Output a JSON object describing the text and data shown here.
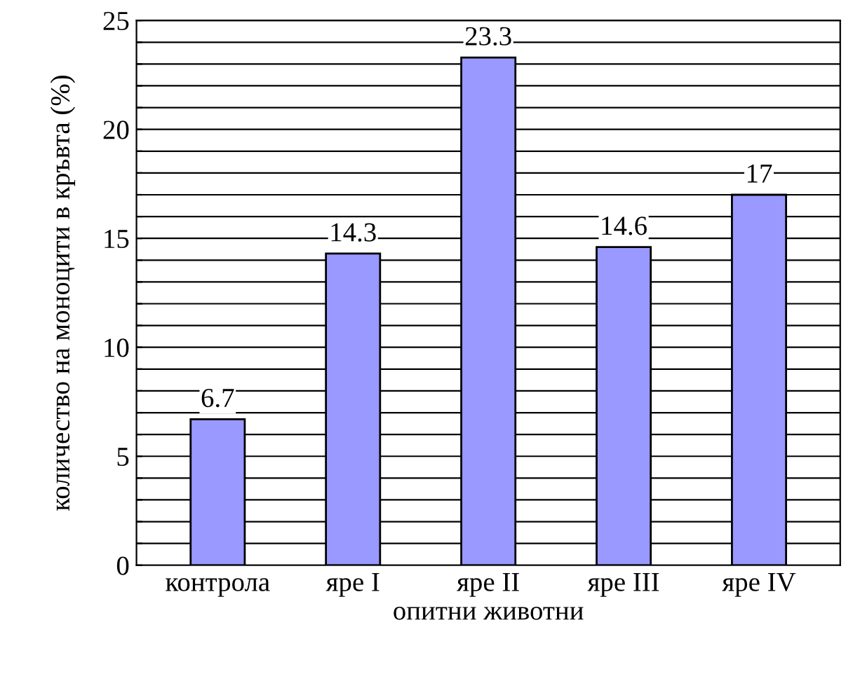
{
  "chart_data": {
    "type": "bar",
    "xlabel": "опитни животни",
    "ylabel": "количество на моноцити в кръвта (%)",
    "categories": [
      "контрола",
      "яре I",
      "яре II",
      "яре III",
      "яре IV"
    ],
    "values": [
      6.7,
      14.3,
      23.3,
      14.6,
      17
    ],
    "color": "#9999ff",
    "data_labels": true,
    "ylim": [
      0,
      25
    ],
    "yticks": [
      0,
      {
        "value": 1,
        "label": null
      },
      {
        "value": 2,
        "label": null
      },
      {
        "value": 3,
        "label": null
      },
      {
        "value": 4,
        "label": null
      },
      5,
      {
        "value": 6,
        "label": null
      },
      {
        "value": 7,
        "label": null
      },
      {
        "value": 8,
        "label": null
      },
      {
        "value": 9,
        "label": null
      },
      10,
      {
        "value": 11,
        "label": null
      },
      {
        "value": 12,
        "label": null
      },
      {
        "value": 13,
        "label": null
      },
      {
        "value": 14,
        "label": null
      },
      15,
      {
        "value": 16,
        "label": null
      },
      {
        "value": 17,
        "label": null
      },
      {
        "value": 18,
        "label": null
      },
      {
        "value": 19,
        "label": null
      },
      20,
      {
        "value": 21,
        "label": null
      },
      {
        "value": 22,
        "label": null
      },
      {
        "value": 23,
        "label": null
      },
      {
        "value": 24,
        "label": null
      },
      25
    ],
    "grid": "y",
    "legend": false
  }
}
